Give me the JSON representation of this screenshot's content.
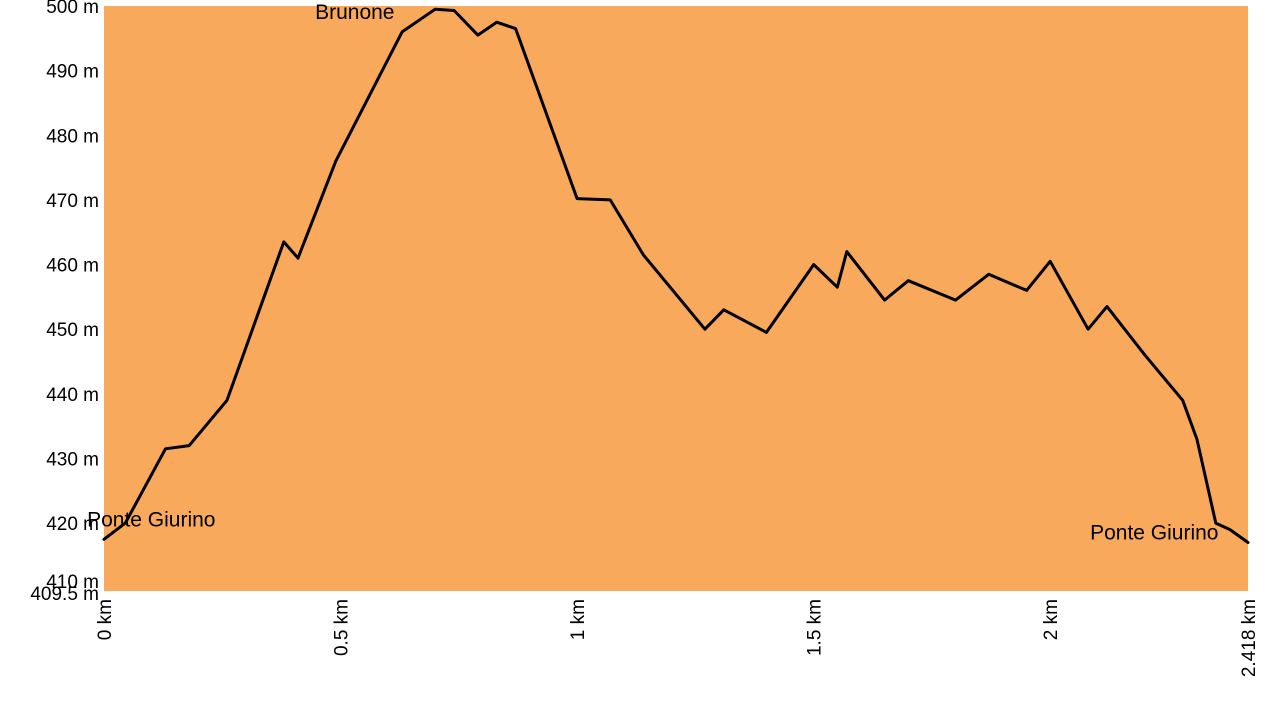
{
  "chart_data": {
    "type": "area",
    "title": "",
    "xlabel": "",
    "ylabel": "",
    "xlim": [
      0,
      2.418
    ],
    "ylim": [
      409.5,
      500
    ],
    "grid": false,
    "fill_color": "#F9A95B",
    "line_color": "#000000",
    "y_ticks": [
      {
        "value": 500,
        "label": "500 m"
      },
      {
        "value": 490,
        "label": "490 m"
      },
      {
        "value": 480,
        "label": "480 m"
      },
      {
        "value": 470,
        "label": "470 m"
      },
      {
        "value": 460,
        "label": "460 m"
      },
      {
        "value": 450,
        "label": "450 m"
      },
      {
        "value": 440,
        "label": "440 m"
      },
      {
        "value": 430,
        "label": "430 m"
      },
      {
        "value": 420,
        "label": "420 m"
      },
      {
        "value": 410,
        "label": "410 m"
      },
      {
        "value": 409.5,
        "label": "409.5 m"
      }
    ],
    "x_ticks": [
      {
        "value": 0,
        "label": "0 km"
      },
      {
        "value": 0.5,
        "label": "0.5 km"
      },
      {
        "value": 1,
        "label": "1 km"
      },
      {
        "value": 1.5,
        "label": "1.5 km"
      },
      {
        "value": 2,
        "label": "2 km"
      },
      {
        "value": 2.418,
        "label": "2.418 km"
      }
    ],
    "annotations": [
      {
        "text": "Brunone",
        "x": 0.53,
        "y": 498.0
      },
      {
        "text": "Ponte Giurino",
        "x": 0.1,
        "y": 419.5
      },
      {
        "text": "Ponte Giurino",
        "x": 2.22,
        "y": 417.5
      }
    ],
    "series": [
      {
        "x": [
          0,
          0.045,
          0.13,
          0.18,
          0.26,
          0.38,
          0.41,
          0.49,
          0.63,
          0.7,
          0.74,
          0.79,
          0.83,
          0.87,
          1.0,
          1.07,
          1.14,
          1.27,
          1.31,
          1.4,
          1.5,
          1.55,
          1.57,
          1.65,
          1.7,
          1.8,
          1.87,
          1.95,
          2.0,
          2.08,
          2.12,
          2.2,
          2.28,
          2.31,
          2.35,
          2.38,
          2.418
        ],
        "y": [
          417.5,
          420,
          431.5,
          432,
          439,
          463.5,
          461,
          476,
          496,
          499.5,
          499.3,
          495.5,
          497.5,
          496.5,
          470.2,
          470,
          461.5,
          450,
          453,
          449.5,
          460,
          456.5,
          462,
          454.5,
          457.5,
          454.5,
          458.5,
          456,
          460.5,
          450,
          453.5,
          446,
          439,
          433,
          420,
          419,
          417
        ]
      }
    ]
  }
}
